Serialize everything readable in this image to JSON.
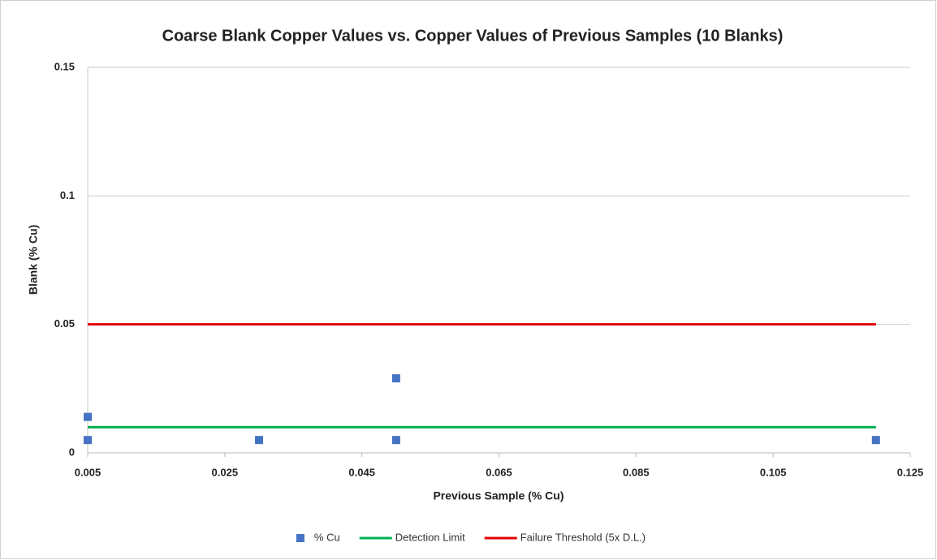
{
  "chart_data": {
    "type": "scatter",
    "title": "Coarse Blank Copper Values vs. Copper Values of Previous Samples (10 Blanks)",
    "x_label": "Previous Sample (% Cu)",
    "y_label": "Blank (% Cu)",
    "xlim": [
      0.005,
      0.125
    ],
    "ylim": [
      0,
      0.15
    ],
    "xticks": [
      0.005,
      0.025,
      0.045,
      0.065,
      0.085,
      0.105,
      0.125
    ],
    "yticks": [
      0,
      0.05,
      0.1,
      0.15
    ],
    "grid": true,
    "legend": "bottom",
    "series": [
      {
        "name": "% Cu",
        "color": "#4472c4",
        "mode": "markers",
        "x": [
          0.005,
          0.005,
          0.03,
          0.05,
          0.05,
          0.12
        ],
        "values": [
          0.014,
          0.005,
          0.005,
          0.029,
          0.005,
          0.005
        ]
      },
      {
        "name": "Detection Limit",
        "color": "#00b050",
        "mode": "line",
        "x": [
          0.005,
          0.12
        ],
        "values": [
          0.01,
          0.01
        ]
      },
      {
        "name": "Failure Threshold (5x D.L.)",
        "color": "#e00000",
        "mode": "line",
        "x": [
          0.005,
          0.12
        ],
        "values": [
          0.05,
          0.05
        ]
      }
    ]
  }
}
